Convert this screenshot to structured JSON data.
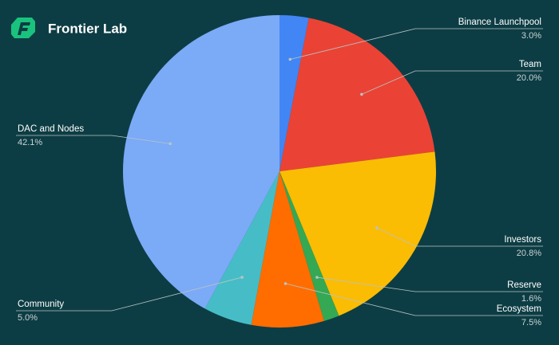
{
  "logo_text": "Frontier Lab",
  "chart_data": {
    "type": "pie",
    "categories": [
      "Binance Launchpool",
      "Team",
      "Investors",
      "Reserve",
      "Ecosystem",
      "Community",
      "DAC and Nodes"
    ],
    "values": [
      3.0,
      20.0,
      20.8,
      1.6,
      7.5,
      5.0,
      42.1
    ],
    "value_labels": [
      "3.0%",
      "20.0%",
      "20.8%",
      "1.6%",
      "7.5%",
      "5.0%",
      "42.1%"
    ],
    "colors": [
      "#4285f4",
      "#ea4335",
      "#fbbc04",
      "#34a853",
      "#ff6d01",
      "#46bdc6",
      "#7baaf7"
    ]
  }
}
